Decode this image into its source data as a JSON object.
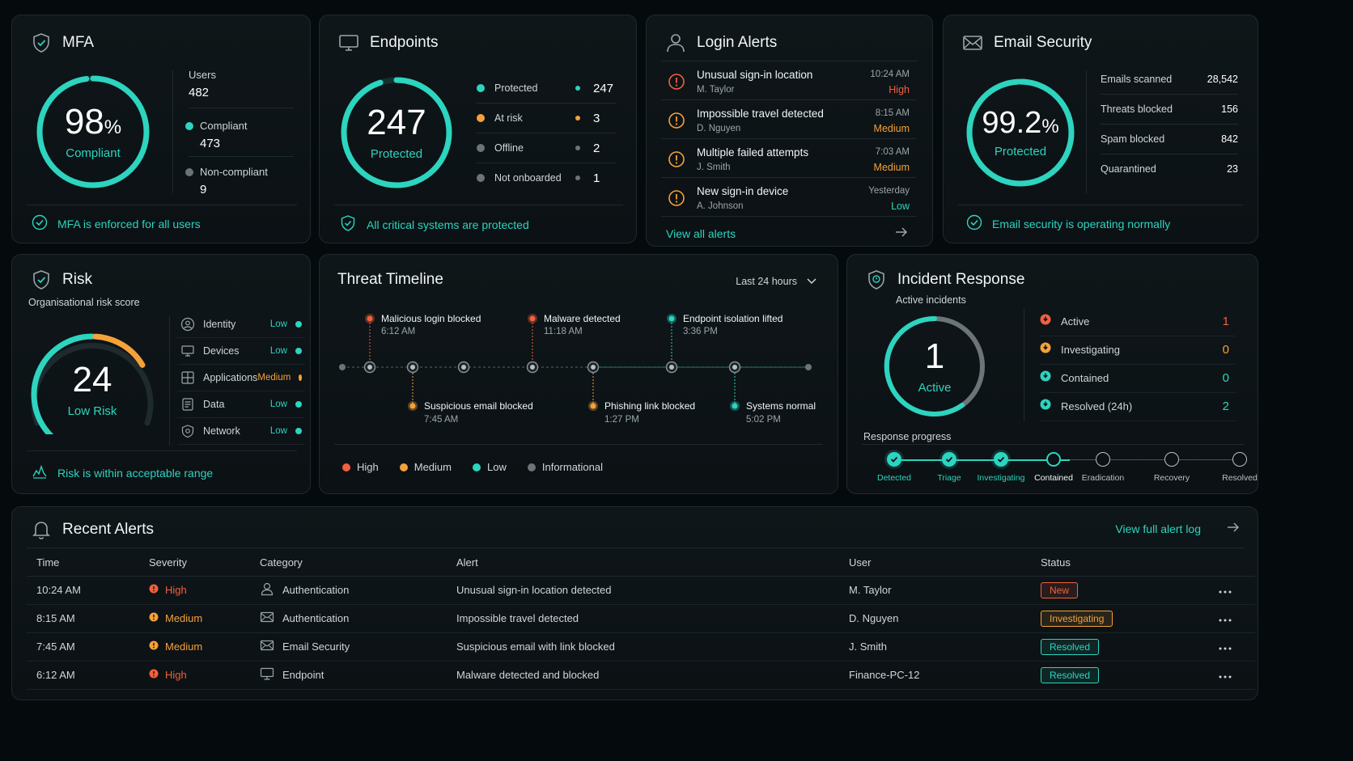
{
  "mfa": {
    "title": "MFA",
    "percent": "98",
    "percent_sign": "%",
    "ring_fraction": 0.98,
    "status": "Compliant",
    "users_label": "Users",
    "users": "482",
    "compliant_label": "Compliant",
    "compliant": "473",
    "noncompliant_label": "Non-compliant",
    "noncompliant": "9",
    "footer": "MFA is enforced for all users"
  },
  "endpoints": {
    "title": "Endpoints",
    "total": "247",
    "status": "Protected",
    "ring_fraction": 0.95,
    "rows": [
      {
        "label": "Protected",
        "value": "247",
        "color": "#2dd4bf"
      },
      {
        "label": "At risk",
        "value": "3",
        "color": "#f5a13a"
      },
      {
        "label": "Offline",
        "value": "2",
        "color": "#6b7479"
      },
      {
        "label": "Not onboarded",
        "value": "1",
        "color": "#6b7479"
      }
    ],
    "footer": "All critical systems are protected"
  },
  "login_alerts": {
    "title": "Login Alerts",
    "items": [
      {
        "title": "Unusual sign-in location",
        "user": "M. Taylor",
        "time": "10:24 AM",
        "severity": "High",
        "sev_color": "#f2603e",
        "icon_color": "#f2603e"
      },
      {
        "title": "Impossible travel detected",
        "user": "D. Nguyen",
        "time": "8:15 AM",
        "severity": "Medium",
        "sev_color": "#f5a13a",
        "icon_color": "#f5a13a"
      },
      {
        "title": "Multiple failed attempts",
        "user": "J. Smith",
        "time": "7:03 AM",
        "severity": "Medium",
        "sev_color": "#f5a13a",
        "icon_color": "#f5a13a"
      },
      {
        "title": "New sign-in device",
        "user": "A. Johnson",
        "time": "Yesterday",
        "severity": "Low",
        "sev_color": "#2dd4bf",
        "icon_color": "#f5a13a"
      }
    ],
    "view_all": "View all alerts"
  },
  "email_security": {
    "title": "Email Security",
    "percent": "99.2",
    "percent_sign": "%",
    "ring_fraction": 0.992,
    "status": "Protected",
    "rows": [
      {
        "label": "Emails scanned",
        "value": "28,542"
      },
      {
        "label": "Threats blocked",
        "value": "156"
      },
      {
        "label": "Spam blocked",
        "value": "842"
      },
      {
        "label": "Quarantined",
        "value": "23"
      }
    ],
    "footer": "Email security is operating normally"
  },
  "risk": {
    "title": "Risk",
    "subtitle": "Organisational risk score",
    "score": "24",
    "score_fraction": 0.24,
    "status": "Low Risk",
    "rows": [
      {
        "label": "Identity",
        "level": "Low",
        "color": "#2dd4bf",
        "icon": "identity-icon"
      },
      {
        "label": "Devices",
        "level": "Low",
        "color": "#2dd4bf",
        "icon": "devices-icon"
      },
      {
        "label": "Applications",
        "level": "Medium",
        "color": "#f5a13a",
        "icon": "applications-icon"
      },
      {
        "label": "Data",
        "level": "Low",
        "color": "#2dd4bf",
        "icon": "data-icon"
      },
      {
        "label": "Network",
        "level": "Low",
        "color": "#2dd4bf",
        "icon": "network-icon"
      }
    ],
    "footer": "Risk is within acceptable range"
  },
  "timeline": {
    "title": "Threat Timeline",
    "range": "Last 24 hours",
    "events_top": [
      {
        "label": "Malicious login blocked",
        "time": "6:12 AM",
        "color": "#f2603e"
      },
      {
        "label": "Malware detected",
        "time": "11:18 AM",
        "color": "#f2603e"
      },
      {
        "label": "Endpoint isolation lifted",
        "time": "3:36 PM",
        "color": "#2dd4bf"
      }
    ],
    "events_bottom": [
      {
        "label": "Suspicious email blocked",
        "time": "7:45 AM",
        "color": "#f5a13a"
      },
      {
        "label": "Phishing link blocked",
        "time": "1:27 PM",
        "color": "#f5a13a"
      },
      {
        "label": "Systems normal",
        "time": "5:02 PM",
        "color": "#2dd4bf"
      }
    ],
    "legend": [
      {
        "label": "High",
        "color": "#f2603e"
      },
      {
        "label": "Medium",
        "color": "#f5a13a"
      },
      {
        "label": "Low",
        "color": "#2dd4bf"
      },
      {
        "label": "Informational",
        "color": "#6b7479"
      }
    ]
  },
  "incident": {
    "title": "Incident Response",
    "subtitle": "Active incidents",
    "count": "1",
    "status": "Active",
    "rows": [
      {
        "label": "Active",
        "value": "1",
        "color": "#f2603e"
      },
      {
        "label": "Investigating",
        "value": "0",
        "color": "#f5a13a"
      },
      {
        "label": "Contained",
        "value": "0",
        "color": "#2dd4bf"
      },
      {
        "label": "Resolved (24h)",
        "value": "2",
        "color": "#2dd4bf"
      }
    ],
    "progress_label": "Response progress",
    "steps": [
      {
        "label": "Detected",
        "state": "done"
      },
      {
        "label": "Triage",
        "state": "done"
      },
      {
        "label": "Investigating",
        "state": "done"
      },
      {
        "label": "Contained",
        "state": "current"
      },
      {
        "label": "Eradication",
        "state": "todo"
      },
      {
        "label": "Recovery",
        "state": "todo"
      },
      {
        "label": "Resolved",
        "state": "todo"
      }
    ]
  },
  "recent": {
    "title": "Recent Alerts",
    "view_full": "View full alert log",
    "columns": [
      "Time",
      "Severity",
      "Category",
      "Alert",
      "User",
      "Status"
    ],
    "rows": [
      {
        "time": "10:24 AM",
        "severity": "High",
        "sev_color": "#f2603e",
        "category": "Authentication",
        "cat_icon": "user-icon",
        "alert": "Unusual sign-in location detected",
        "user": "M. Taylor",
        "status": "New",
        "status_kind": "new"
      },
      {
        "time": "8:15 AM",
        "severity": "Medium",
        "sev_color": "#f5a13a",
        "category": "Authentication",
        "cat_icon": "mail-icon",
        "alert": "Impossible travel detected",
        "user": "D. Nguyen",
        "status": "Investigating",
        "status_kind": "inv"
      },
      {
        "time": "7:45 AM",
        "severity": "Medium",
        "sev_color": "#f5a13a",
        "category": "Email Security",
        "cat_icon": "mail-icon",
        "alert": "Suspicious email with link blocked",
        "user": "J. Smith",
        "status": "Resolved",
        "status_kind": "res"
      },
      {
        "time": "6:12 AM",
        "severity": "High",
        "sev_color": "#f2603e",
        "category": "Endpoint",
        "cat_icon": "monitor-icon",
        "alert": "Malware detected and blocked",
        "user": "Finance-PC-12",
        "status": "Resolved",
        "status_kind": "res"
      }
    ]
  }
}
